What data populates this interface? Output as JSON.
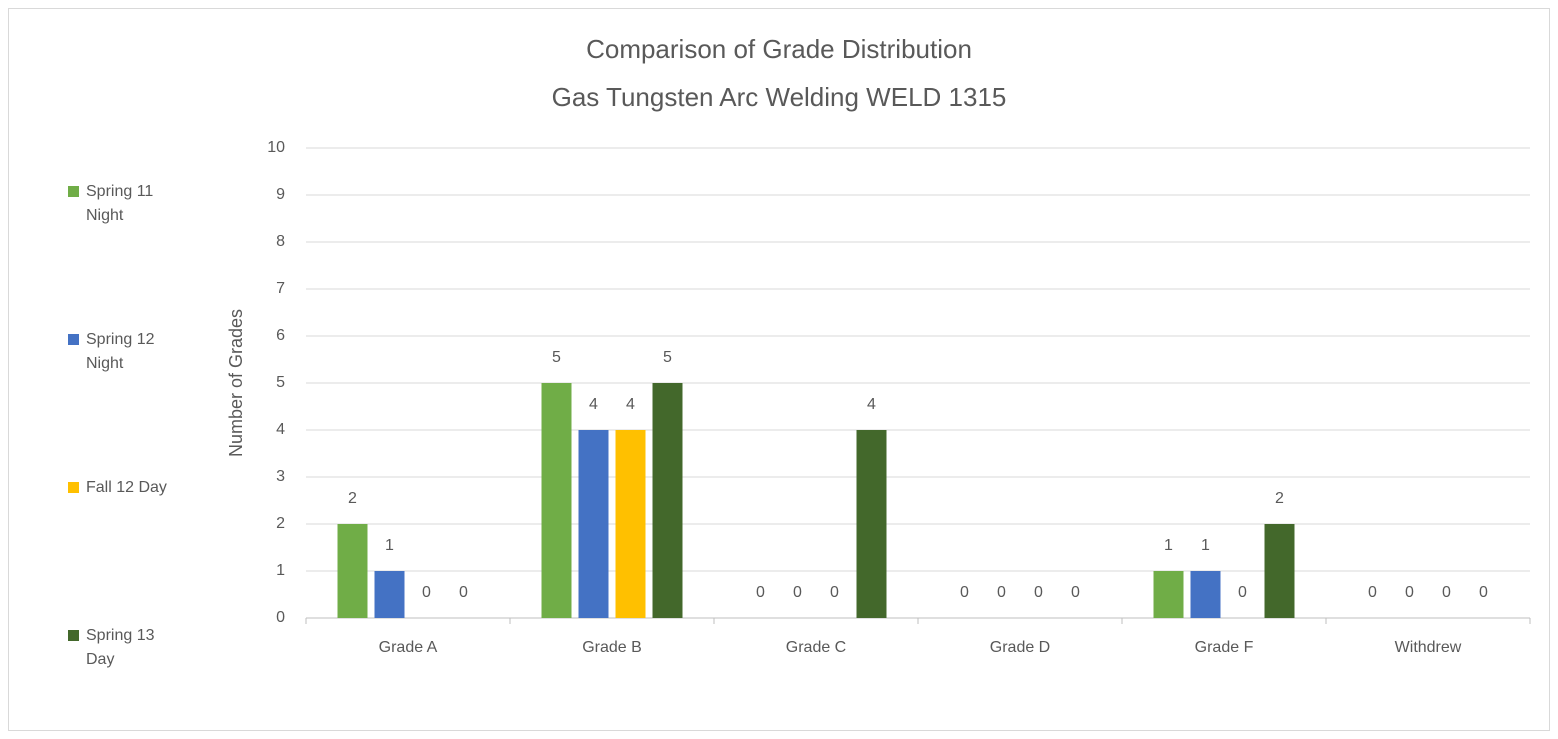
{
  "chart_data": {
    "type": "bar",
    "title": "Comparison of Grade Distribution",
    "subtitle": "Gas Tungsten Arc Welding WELD 1315",
    "y_label": "Number of Grades",
    "categories": [
      "Grade A",
      "Grade B",
      "Grade C",
      "Grade D",
      "Grade F",
      "Withdrew"
    ],
    "series": [
      {
        "name": "Spring 11 Night",
        "color": "#70ad47",
        "values": [
          2,
          5,
          0,
          0,
          1,
          0
        ]
      },
      {
        "name": "Spring 12 Night",
        "color": "#4472c4",
        "values": [
          1,
          4,
          0,
          0,
          1,
          0
        ]
      },
      {
        "name": "Fall 12 Day",
        "color": "#ffc000",
        "values": [
          0,
          4,
          0,
          0,
          0,
          0
        ]
      },
      {
        "name": "Spring 13 Day",
        "color": "#43682b",
        "values": [
          0,
          5,
          4,
          0,
          2,
          0
        ]
      }
    ],
    "ylim": [
      0,
      10
    ],
    "yticks": [
      0,
      1,
      2,
      3,
      4,
      5,
      6,
      7,
      8,
      9,
      10
    ],
    "grid": true,
    "legend": "left",
    "data_labels": true
  }
}
